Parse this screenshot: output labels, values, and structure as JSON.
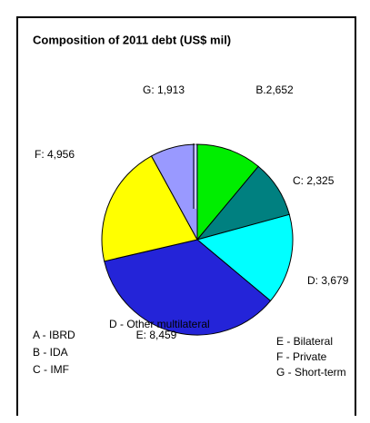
{
  "chart_data": {
    "type": "pie",
    "title": "Composition of 2011 debt (US$ mil)",
    "categories": [
      "B",
      "C",
      "D",
      "E",
      "F",
      "G"
    ],
    "values": [
      2652,
      2325,
      3679,
      8459,
      4956,
      1913
    ],
    "value_labels": [
      "B.2,652",
      "C: 2,325",
      "D: 3,679",
      "E: 8,459",
      "F: 4,956",
      "G: 1,913"
    ],
    "colors": [
      "#00ee00",
      "#008080",
      "#00ffff",
      "#2424d8",
      "#ffff00",
      "#9999ff"
    ],
    "legend": [
      "A - IBRD",
      "B - IDA",
      "C - IMF",
      "D - Other multilateral",
      "E - Bilateral",
      "F - Private",
      "G - Short-term"
    ]
  }
}
